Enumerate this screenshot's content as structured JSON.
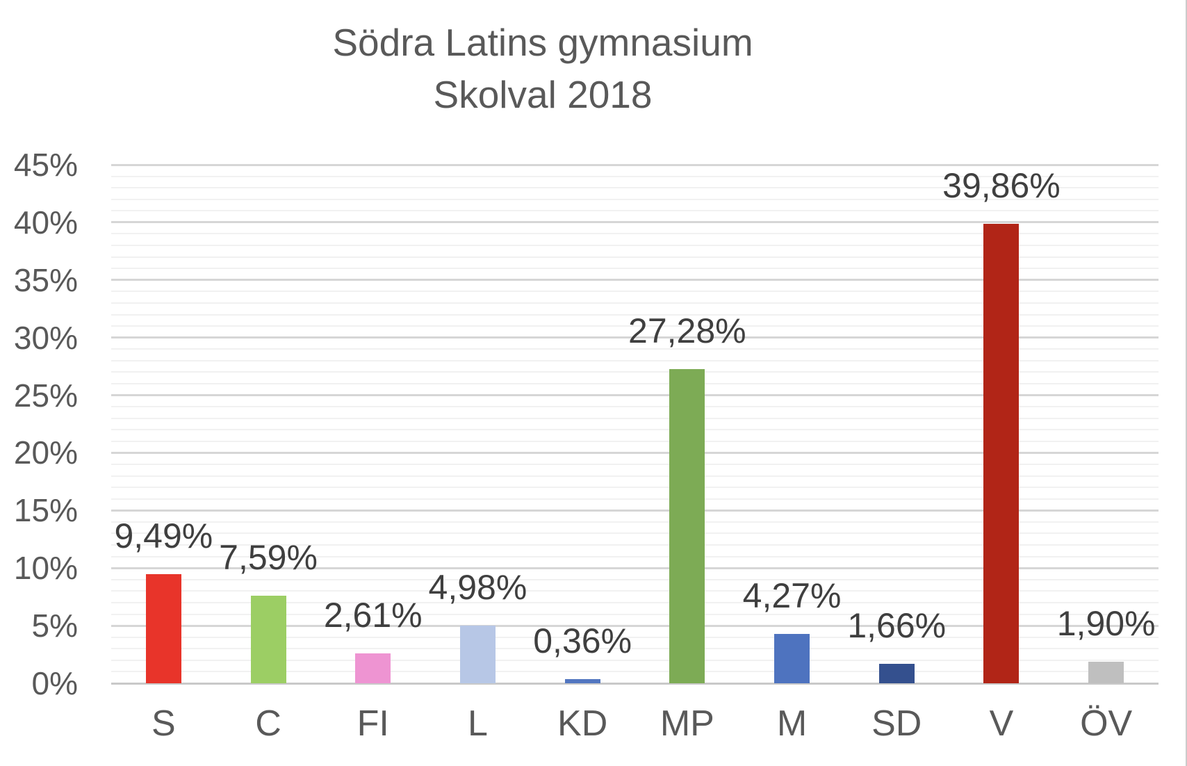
{
  "title": {
    "line1": "Södra Latins gymnasium",
    "line2": "Skolval 2018"
  },
  "chart_data": {
    "type": "bar",
    "title": "Södra Latins gymnasium — Skolval 2018",
    "categories": [
      "S",
      "C",
      "FI",
      "L",
      "KD",
      "MP",
      "M",
      "SD",
      "V",
      "ÖV"
    ],
    "values": [
      9.49,
      7.59,
      2.61,
      4.98,
      0.36,
      27.28,
      4.27,
      1.66,
      39.86,
      1.9
    ],
    "value_labels": [
      "9,49%",
      "7,59%",
      "2,61%",
      "4,98%",
      "0,36%",
      "27,28%",
      "4,27%",
      "1,66%",
      "39,86%",
      "1,90%"
    ],
    "bar_colors": [
      "#e8342a",
      "#9cce64",
      "#ee94d2",
      "#b7c7e6",
      "#5276c0",
      "#7dab55",
      "#4e73bf",
      "#34508e",
      "#b12517",
      "#bfbfbf"
    ],
    "xlabel": "",
    "ylabel": "",
    "ylim": [
      0,
      45
    ],
    "y_ticks": [
      "0%",
      "5%",
      "10%",
      "15%",
      "20%",
      "25%",
      "30%",
      "35%",
      "40%",
      "45%"
    ],
    "y_tick_step_pct": 5,
    "minor_grid_step_pct": 1,
    "grid": "major and minor horizontal",
    "legend": false,
    "decimal_separator": ","
  },
  "colors": {
    "title_text": "#595959",
    "axis_text": "#595959",
    "data_label_text": "#3f3f3f",
    "major_gridline": "#d6d6d6",
    "minor_gridline": "#f1f1f1",
    "axis_line": "#c9c9c9",
    "background": "#ffffff"
  }
}
